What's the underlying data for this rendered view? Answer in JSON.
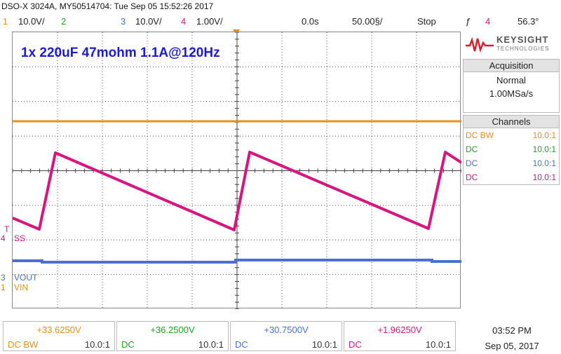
{
  "header": {
    "title": "DSO-X 3024A, MY50514704: Tue Sep 05 15:52:26 2017"
  },
  "status": {
    "ch1_num": "1",
    "ch1_scale": "10.0V/",
    "ch2_num": "2",
    "ch3_num": "3",
    "ch3_scale": "10.0V/",
    "ch4_num": "4",
    "ch4_scale": "1.00V/",
    "time_delay": "0.0s",
    "time_scale": "50.00§/",
    "run_state": "Stop",
    "trigger_symbol": "ƒ",
    "trigger_channel": "4",
    "trigger_level": "56.3°"
  },
  "annotation": "1x 220uF 47mohm 1.1A@120Hz",
  "channel_labels": {
    "ss": "SS",
    "ss_num": "4",
    "vout": "VOUT",
    "vout_num": "3",
    "vin": "VIN",
    "vin_num": "1"
  },
  "logo": {
    "brand": "KEYSIGHT",
    "sub": "TECHNOLOGIES"
  },
  "acquisition": {
    "title": "Acquisition",
    "mode": "Normal",
    "rate": "1.00MSa/s"
  },
  "channels_panel": {
    "title": "Channels",
    "rows": [
      {
        "coupling": "DC  BW",
        "ratio": "10.0:1",
        "color": "#e8901a"
      },
      {
        "coupling": "DC",
        "ratio": "10.0:1",
        "color": "#1fa32a"
      },
      {
        "coupling": "DC",
        "ratio": "10.0:1",
        "color": "#4a70d8"
      },
      {
        "coupling": "DC",
        "ratio": "10.0:1",
        "color": "#d8157f"
      }
    ]
  },
  "measurements": [
    {
      "value": "+33.6250V",
      "coupling": "DC  BW",
      "ratio": "10.0:1",
      "color": "#e8901a"
    },
    {
      "value": "+36.2500V",
      "coupling": "DC",
      "ratio": "10.0:1",
      "color": "#1fa32a"
    },
    {
      "value": "+30.7500V",
      "coupling": "DC",
      "ratio": "10.0:1",
      "color": "#4a70d8"
    },
    {
      "value": "+1.96250V",
      "coupling": "DC",
      "ratio": "10.0:1",
      "color": "#d8157f"
    }
  ],
  "clock": {
    "time": "03:52 PM",
    "date": "Sep 05, 2017"
  },
  "colors": {
    "ch1": "#e8901a",
    "ch2": "#1fa32a",
    "ch3": "#4a70d8",
    "ch4": "#d8157f",
    "annotation": "#1a1ad8"
  }
}
